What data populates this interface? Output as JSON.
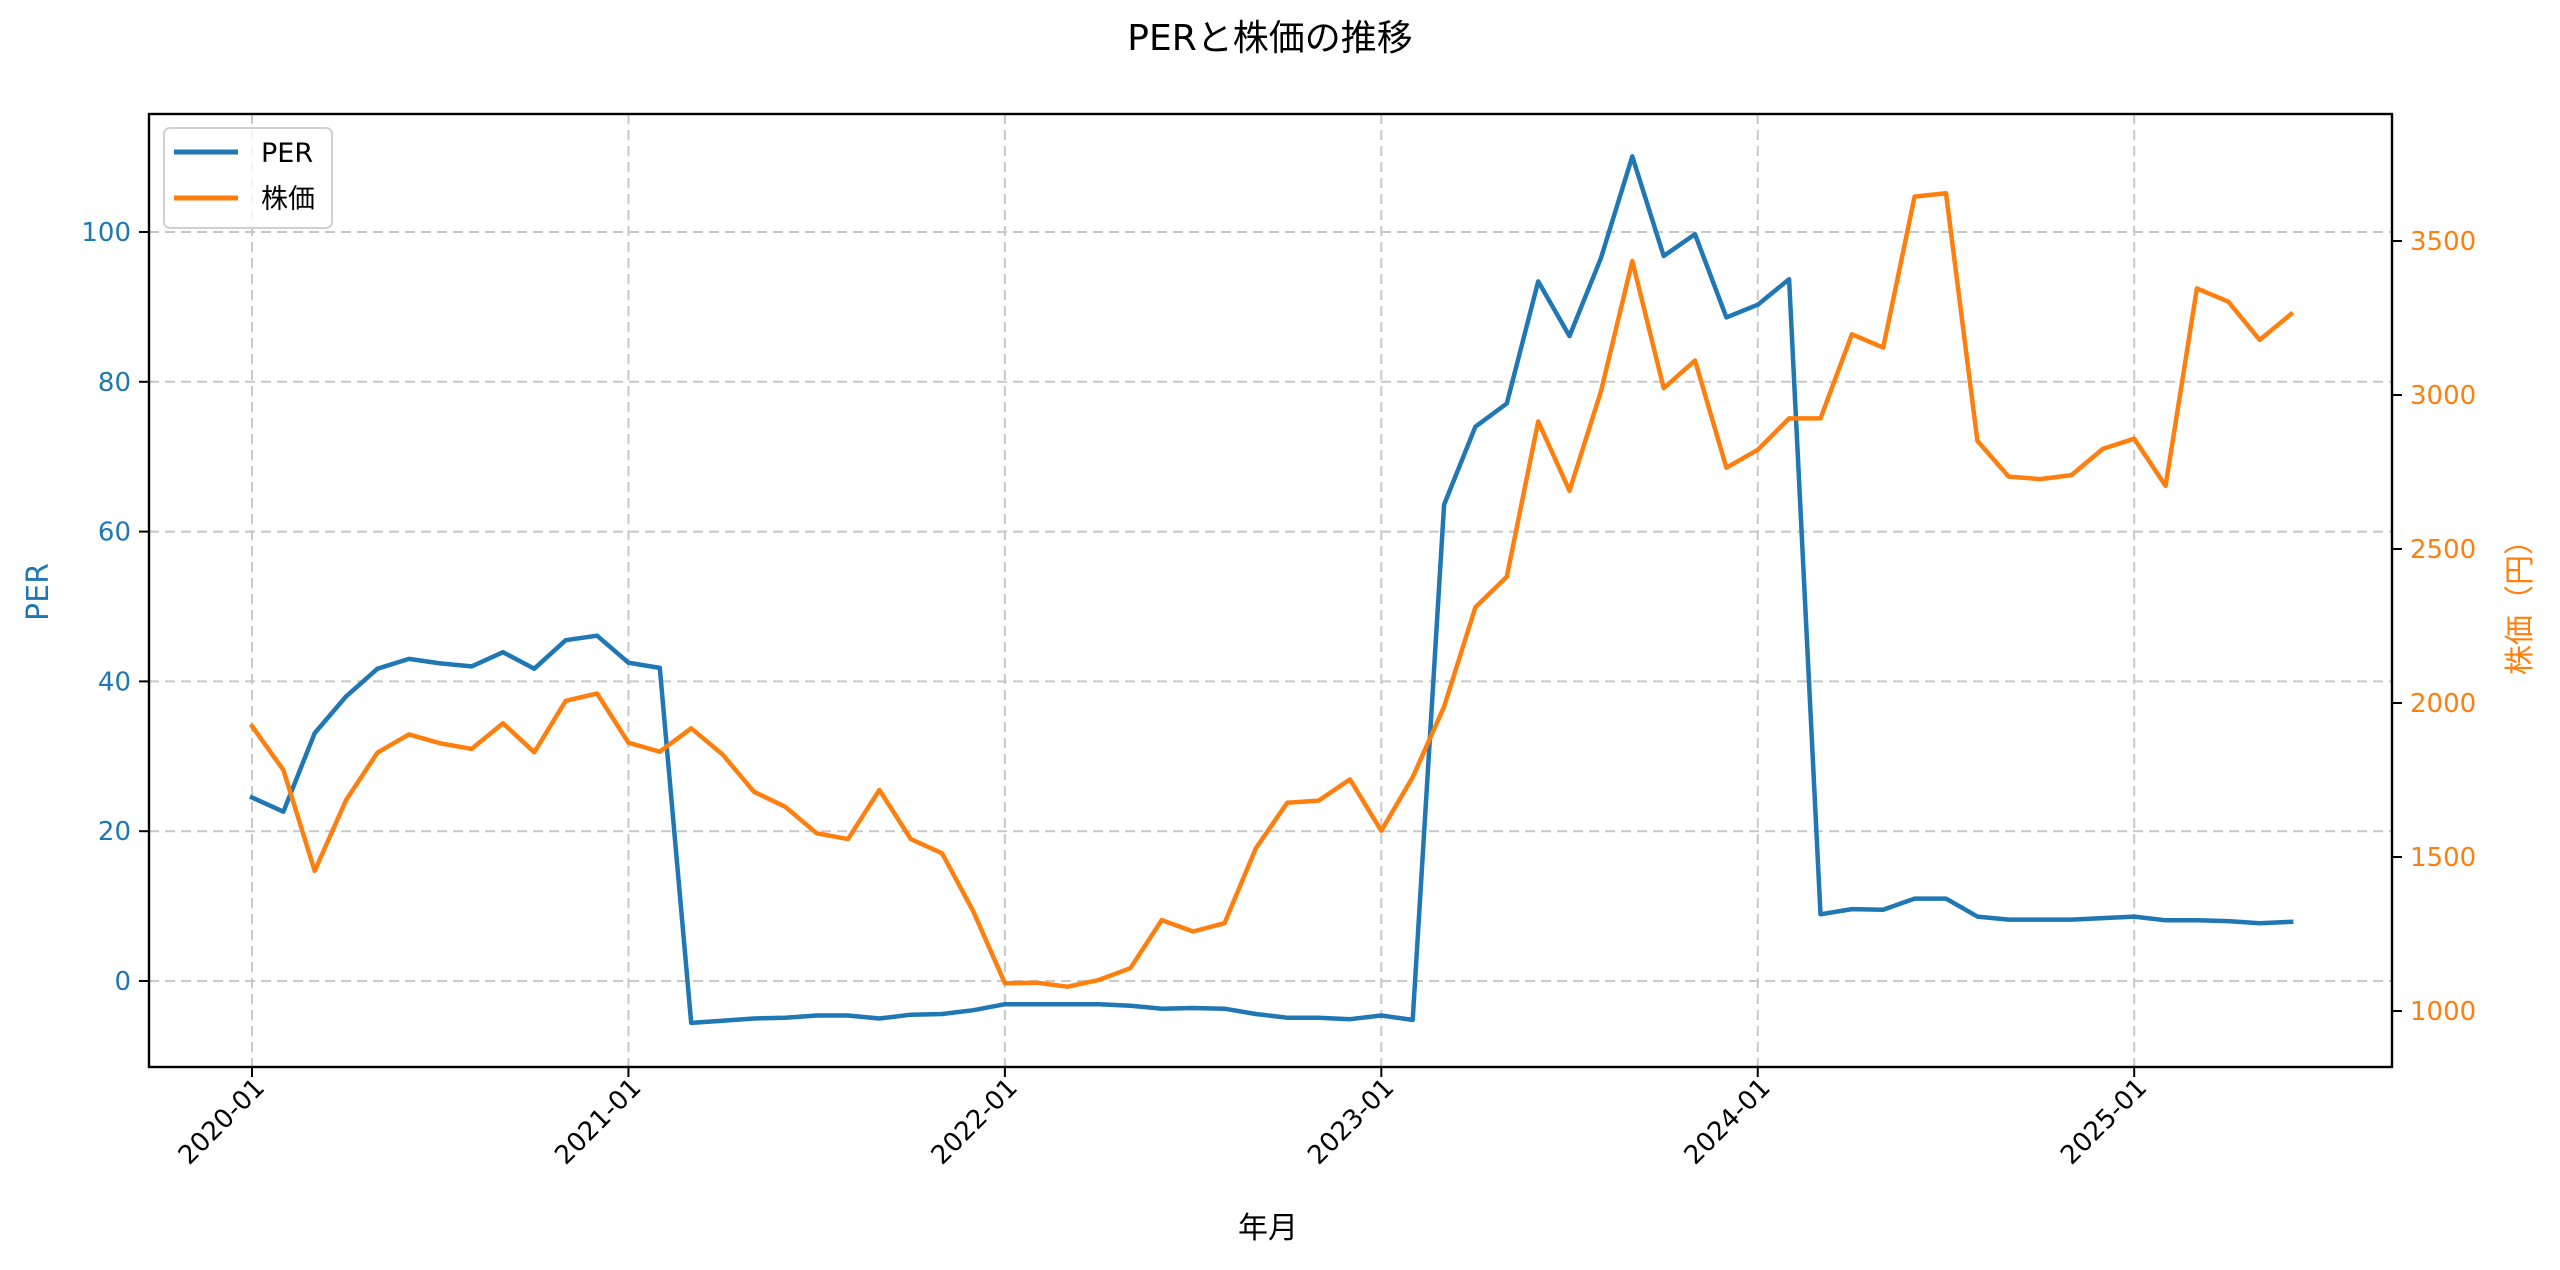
{
  "chart_data": {
    "type": "line",
    "title": "PERと株価の推移",
    "xlabel": "年月",
    "ylabel_left": "PER",
    "ylabel_right": "株価（円）",
    "grid": true,
    "legend_position": "upper left",
    "x": [
      "2020-01",
      "2020-02",
      "2020-03",
      "2020-04",
      "2020-05",
      "2020-06",
      "2020-07",
      "2020-08",
      "2020-09",
      "2020-10",
      "2020-11",
      "2020-12",
      "2021-01",
      "2021-02",
      "2021-03",
      "2021-04",
      "2021-05",
      "2021-06",
      "2021-07",
      "2021-08",
      "2021-09",
      "2021-10",
      "2021-11",
      "2021-12",
      "2022-01",
      "2022-02",
      "2022-03",
      "2022-04",
      "2022-05",
      "2022-06",
      "2022-07",
      "2022-08",
      "2022-09",
      "2022-10",
      "2022-11",
      "2022-12",
      "2023-01",
      "2023-02",
      "2023-03",
      "2023-04",
      "2023-05",
      "2023-06",
      "2023-07",
      "2023-08",
      "2023-09",
      "2023-10",
      "2023-11",
      "2023-12",
      "2024-01",
      "2024-02",
      "2024-03",
      "2024-04",
      "2024-05",
      "2024-06",
      "2024-07",
      "2024-08",
      "2024-09",
      "2024-10",
      "2024-11",
      "2024-12",
      "2025-01",
      "2025-02",
      "2025-03",
      "2025-04",
      "2025-05",
      "2025-06"
    ],
    "x_ticks": [
      "2020-01",
      "2021-01",
      "2022-01",
      "2023-01",
      "2024-01",
      "2025-01"
    ],
    "series": [
      {
        "name": "PER",
        "axis": "left",
        "color": "#1f77b4",
        "values": [
          24.5,
          22.6,
          33.1,
          38.0,
          41.7,
          43.0,
          42.4,
          42.0,
          43.9,
          41.7,
          45.5,
          46.1,
          42.5,
          41.8,
          -5.6,
          -5.3,
          -5.0,
          -4.9,
          -4.6,
          -4.6,
          -5.0,
          -4.5,
          -4.4,
          -3.9,
          -3.1,
          -3.1,
          -3.1,
          -3.1,
          -3.3,
          -3.7,
          -3.6,
          -3.7,
          -4.4,
          -4.9,
          -4.9,
          -5.1,
          -4.6,
          -5.2,
          63.6,
          74.0,
          77.1,
          93.4,
          86.1,
          96.5,
          110.1,
          96.8,
          99.7,
          88.6,
          90.3,
          93.7,
          8.9,
          9.6,
          9.5,
          11.0,
          11.0,
          8.6,
          8.2,
          8.2,
          8.2,
          8.4,
          8.6,
          8.1,
          8.1,
          8.0,
          7.7,
          7.9
        ]
      },
      {
        "name": "株価",
        "axis": "right",
        "color": "#ff7f0e",
        "values": [
          1925,
          1782,
          1455,
          1685,
          1839,
          1898,
          1869,
          1851,
          1934,
          1840,
          2007,
          2031,
          1871,
          1842,
          1918,
          1833,
          1712,
          1663,
          1577,
          1558,
          1718,
          1558,
          1512,
          1322,
          1090,
          1092,
          1079,
          1101,
          1139,
          1295,
          1258,
          1285,
          1528,
          1676,
          1683,
          1752,
          1585,
          1759,
          1988,
          2311,
          2410,
          2914,
          2689,
          3011,
          3435,
          3022,
          3112,
          2764,
          2822,
          2924,
          2924,
          3197,
          3154,
          3644,
          3655,
          2851,
          2735,
          2727,
          2740,
          2825,
          2858,
          2705,
          3346,
          3303,
          3179,
          3263
        ]
      }
    ],
    "ylim_left": [
      -11.5,
      115.8
    ],
    "ylim_right": [
      818,
      3912
    ],
    "yticks_left": [
      0,
      20,
      40,
      60,
      80,
      100
    ],
    "yticks_right": [
      1000,
      1500,
      2000,
      2500,
      3000,
      3500
    ]
  },
  "colors": {
    "per": "#1f77b4",
    "price": "#ff7f0e",
    "grid": "#c8c8c8",
    "axis": "#000000"
  },
  "legend": {
    "items": [
      {
        "label": "PER",
        "color": "#1f77b4"
      },
      {
        "label": "株価",
        "color": "#ff7f0e"
      }
    ]
  }
}
